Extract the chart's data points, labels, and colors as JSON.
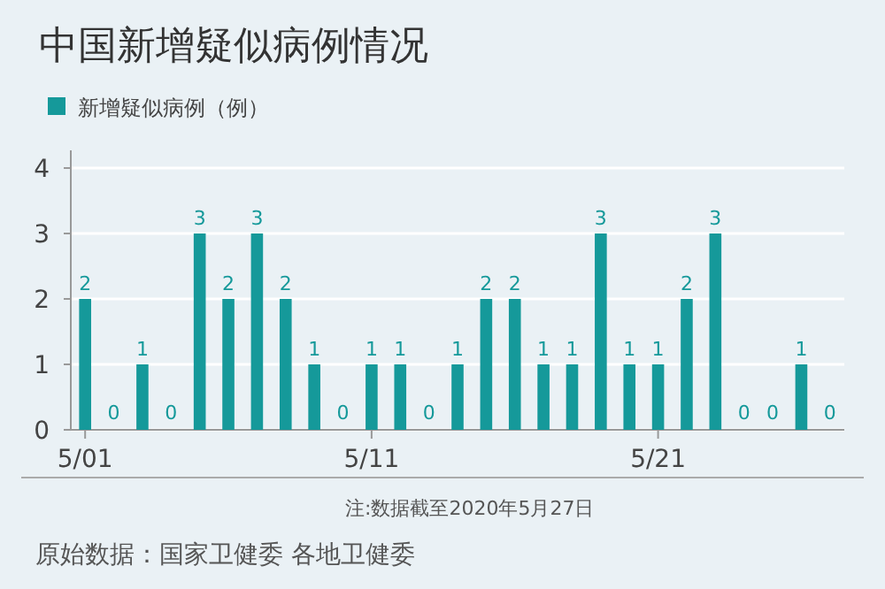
{
  "chart_data": {
    "type": "bar",
    "title": "中国新增疑似病例情况",
    "categories": [
      "5/01",
      null,
      null,
      null,
      null,
      null,
      null,
      null,
      null,
      null,
      "5/11",
      null,
      null,
      null,
      null,
      null,
      null,
      null,
      null,
      null,
      "5/21",
      null,
      null,
      null,
      null,
      null,
      null
    ],
    "series": [
      {
        "name": "新增疑似病例（例）",
        "color": "#15999a",
        "values": [
          2,
          0,
          1,
          0,
          3,
          2,
          3,
          2,
          1,
          0,
          1,
          1,
          0,
          1,
          2,
          2,
          1,
          1,
          3,
          1,
          1,
          2,
          3,
          0,
          0,
          1,
          0
        ]
      }
    ],
    "ylim": [
      0,
      4
    ],
    "yticks": [
      0,
      1,
      2,
      3,
      4
    ],
    "grid": "y",
    "legend": "top left",
    "data_labels": true,
    "annotations": [
      "注:数据截至2020年5月27日",
      "原始数据：国家卫健委 各地卫健委"
    ]
  }
}
